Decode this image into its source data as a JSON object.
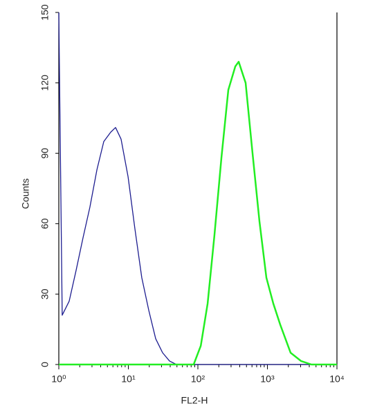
{
  "chart_data": {
    "type": "line",
    "xlabel": "FL2-H",
    "ylabel": "Counts",
    "xscale": "log",
    "xlim": [
      1,
      10000
    ],
    "ylim": [
      0,
      150
    ],
    "xticks": [
      {
        "value": 1,
        "label": "10⁰"
      },
      {
        "value": 10,
        "label": "10¹"
      },
      {
        "value": 100,
        "label": "10²"
      },
      {
        "value": 1000,
        "label": "10³"
      },
      {
        "value": 10000,
        "label": "10⁴"
      }
    ],
    "yticks": [
      0,
      30,
      60,
      90,
      120,
      150
    ],
    "series": [
      {
        "color": "#1c1c8f",
        "x": [
          1,
          1.12,
          1.41,
          1.77,
          2.23,
          2.8,
          3.53,
          4.43,
          5.57,
          6.55,
          7.87,
          9.9,
          12.4,
          15.6,
          19.7,
          24.7,
          31.1,
          39.1,
          49.2,
          10000
        ],
        "values": [
          150,
          21,
          27,
          40,
          54,
          67,
          83,
          95,
          99,
          101,
          96,
          80,
          58,
          37,
          23,
          11,
          5,
          1.5,
          0,
          0
        ]
      },
      {
        "color": "#22ee22",
        "x": [
          1,
          87,
          110,
          138,
          173,
          218,
          274,
          345,
          386,
          486,
          611,
          769,
          967,
          1216,
          1528,
          2154,
          3040,
          4290,
          10000
        ],
        "values": [
          0,
          0,
          8,
          26,
          55,
          88,
          117,
          127,
          129,
          120,
          90,
          61,
          37,
          26,
          17,
          5,
          1.5,
          0,
          0
        ]
      }
    ]
  }
}
